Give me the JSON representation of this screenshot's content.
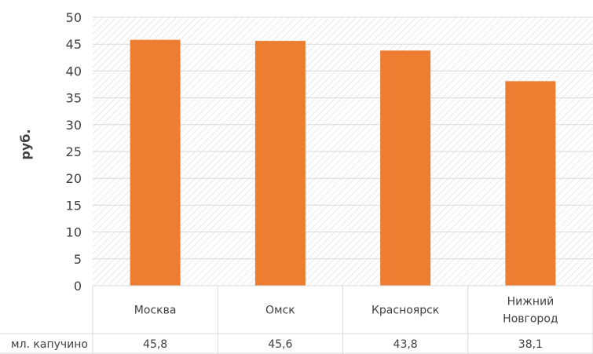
{
  "chart_data": {
    "type": "bar",
    "ylabel": "руб.",
    "ylim": [
      0,
      50
    ],
    "yticks": [
      0,
      5,
      10,
      15,
      20,
      25,
      30,
      35,
      40,
      45,
      50
    ],
    "categories": [
      {
        "lines": [
          "Москва"
        ]
      },
      {
        "lines": [
          "Омск"
        ]
      },
      {
        "lines": [
          "Красноярск"
        ]
      },
      {
        "lines": [
          "Нижний",
          "Новгород"
        ]
      }
    ],
    "series": [
      {
        "name": "мл. капучино",
        "values": [
          45.8,
          45.6,
          43.8,
          38.1
        ],
        "labels": [
          "45,8",
          "45,6",
          "43,8",
          "38,1"
        ]
      }
    ],
    "grid": true,
    "colors": {
      "bar": "#ED7D31",
      "grid": "#D9D9D9",
      "text": "#404040",
      "hatch": "#DADADA"
    }
  }
}
